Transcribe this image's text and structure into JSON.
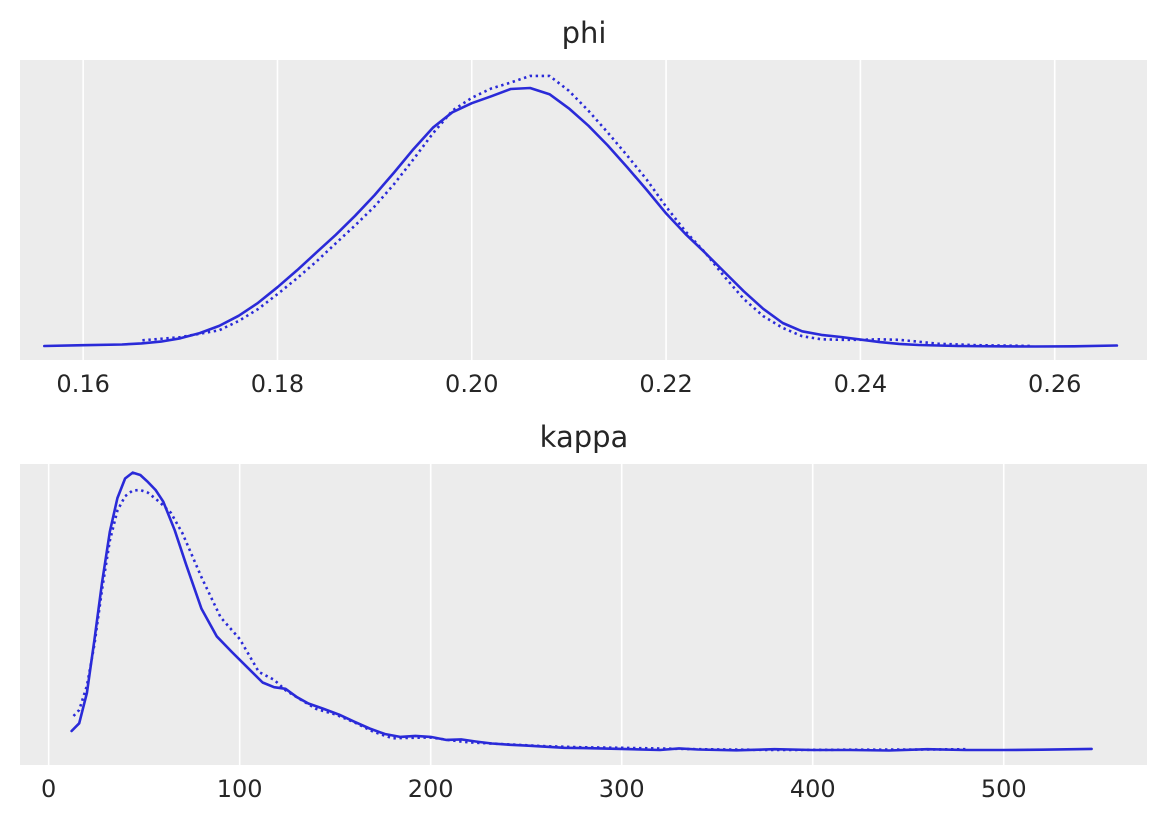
{
  "chart_data": [
    {
      "type": "line",
      "title": "phi",
      "xlabel": "",
      "ylabel": "",
      "xlim": [
        0.1535,
        0.2695
      ],
      "ylim": [
        0,
        1.08
      ],
      "grid": true,
      "yticks_visible": false,
      "xticks": [
        0.16,
        0.18,
        0.2,
        0.22,
        0.24,
        0.26
      ],
      "xtick_labels": [
        "0.16",
        "0.18",
        "0.20",
        "0.22",
        "0.24",
        "0.26"
      ],
      "color": "#2a2ad8",
      "background": "#ececec",
      "series": [
        {
          "style": "solid",
          "x": [
            0.156,
            0.16,
            0.164,
            0.166,
            0.168,
            0.17,
            0.172,
            0.174,
            0.176,
            0.178,
            0.18,
            0.182,
            0.184,
            0.186,
            0.188,
            0.19,
            0.192,
            0.194,
            0.196,
            0.198,
            0.2,
            0.202,
            0.204,
            0.206,
            0.208,
            0.21,
            0.212,
            0.214,
            0.216,
            0.218,
            0.22,
            0.222,
            0.224,
            0.226,
            0.228,
            0.23,
            0.232,
            0.234,
            0.236,
            0.238,
            0.24,
            0.242,
            0.244,
            0.246,
            0.248,
            0.25,
            0.254,
            0.258,
            0.262,
            0.2664
          ],
          "y": [
            0.0,
            0.003,
            0.006,
            0.01,
            0.017,
            0.03,
            0.05,
            0.078,
            0.117,
            0.167,
            0.228,
            0.293,
            0.362,
            0.431,
            0.505,
            0.585,
            0.672,
            0.763,
            0.846,
            0.906,
            0.941,
            0.968,
            0.996,
            1.0,
            0.976,
            0.921,
            0.854,
            0.777,
            0.693,
            0.605,
            0.514,
            0.434,
            0.362,
            0.287,
            0.212,
            0.144,
            0.089,
            0.057,
            0.043,
            0.035,
            0.025,
            0.015,
            0.008,
            0.004,
            0.002,
            0.0,
            -0.001,
            -0.002,
            -0.001,
            0.002
          ]
        },
        {
          "style": "dotted",
          "x": [
            0.1661,
            0.17,
            0.174,
            0.176,
            0.178,
            0.18,
            0.182,
            0.184,
            0.186,
            0.188,
            0.19,
            0.192,
            0.194,
            0.196,
            0.198,
            0.2,
            0.202,
            0.204,
            0.206,
            0.208,
            0.21,
            0.212,
            0.214,
            0.216,
            0.218,
            0.22,
            0.222,
            0.224,
            0.226,
            0.228,
            0.23,
            0.232,
            0.234,
            0.236,
            0.238,
            0.24,
            0.242,
            0.244,
            0.248,
            0.252,
            0.256,
            0.2575
          ],
          "y": [
            0.022,
            0.034,
            0.061,
            0.097,
            0.143,
            0.201,
            0.262,
            0.327,
            0.398,
            0.468,
            0.541,
            0.627,
            0.724,
            0.824,
            0.912,
            0.962,
            0.998,
            1.021,
            1.047,
            1.047,
            0.989,
            0.912,
            0.827,
            0.738,
            0.645,
            0.54,
            0.444,
            0.363,
            0.269,
            0.182,
            0.116,
            0.07,
            0.038,
            0.026,
            0.024,
            0.024,
            0.026,
            0.024,
            0.009,
            0.003,
            0.001,
            0.0
          ]
        }
      ]
    },
    {
      "type": "line",
      "title": "kappa",
      "xlabel": "",
      "ylabel": "",
      "xlim": [
        -15,
        575
      ],
      "ylim": [
        0,
        1.08
      ],
      "grid": true,
      "yticks_visible": false,
      "xticks": [
        0,
        100,
        200,
        300,
        400,
        500
      ],
      "xtick_labels": [
        "0",
        "100",
        "200",
        "300",
        "400",
        "500"
      ],
      "color": "#2a2ad8",
      "background": "#ececec",
      "series": [
        {
          "style": "solid",
          "x": [
            12,
            16,
            20,
            24,
            28,
            32,
            36,
            40,
            44,
            48,
            52,
            56,
            60,
            66,
            72,
            80,
            88,
            96,
            104,
            112,
            118,
            124,
            130,
            136,
            144,
            152,
            160,
            168,
            176,
            184,
            192,
            200,
            208,
            216,
            224,
            232,
            240,
            250,
            260,
            270,
            280,
            300,
            320,
            330,
            340,
            360,
            380,
            400,
            420,
            440,
            460,
            480,
            500,
            520,
            546
          ],
          "y": [
            0.07,
            0.098,
            0.21,
            0.407,
            0.617,
            0.802,
            0.926,
            0.998,
            1.02,
            1.011,
            0.985,
            0.956,
            0.913,
            0.808,
            0.681,
            0.519,
            0.418,
            0.36,
            0.304,
            0.248,
            0.231,
            0.225,
            0.194,
            0.171,
            0.151,
            0.13,
            0.104,
            0.079,
            0.059,
            0.048,
            0.052,
            0.048,
            0.037,
            0.039,
            0.031,
            0.024,
            0.02,
            0.016,
            0.012,
            0.008,
            0.007,
            0.004,
            0.0,
            0.006,
            0.002,
            -0.001,
            0.003,
            0.0,
            0.0,
            -0.002,
            0.003,
            0.0,
            0.0,
            0.001,
            0.004
          ]
        },
        {
          "style": "dotted",
          "x": [
            13,
            16,
            20,
            24,
            28,
            32,
            36,
            40,
            44,
            48,
            52,
            58,
            64,
            70,
            80,
            90,
            100,
            110,
            118,
            124,
            132,
            140,
            150,
            160,
            170,
            180,
            190,
            200,
            210,
            220,
            240,
            260,
            280,
            300,
            340,
            380,
            420,
            460,
            480
          ],
          "y": [
            0.125,
            0.147,
            0.236,
            0.39,
            0.591,
            0.769,
            0.88,
            0.933,
            0.954,
            0.956,
            0.946,
            0.912,
            0.872,
            0.797,
            0.635,
            0.488,
            0.408,
            0.287,
            0.258,
            0.22,
            0.185,
            0.151,
            0.131,
            0.102,
            0.067,
            0.043,
            0.045,
            0.046,
            0.036,
            0.028,
            0.021,
            0.014,
            0.01,
            0.008,
            0.003,
            0.0,
            0.001,
            0.002,
            0.003
          ]
        }
      ]
    }
  ]
}
